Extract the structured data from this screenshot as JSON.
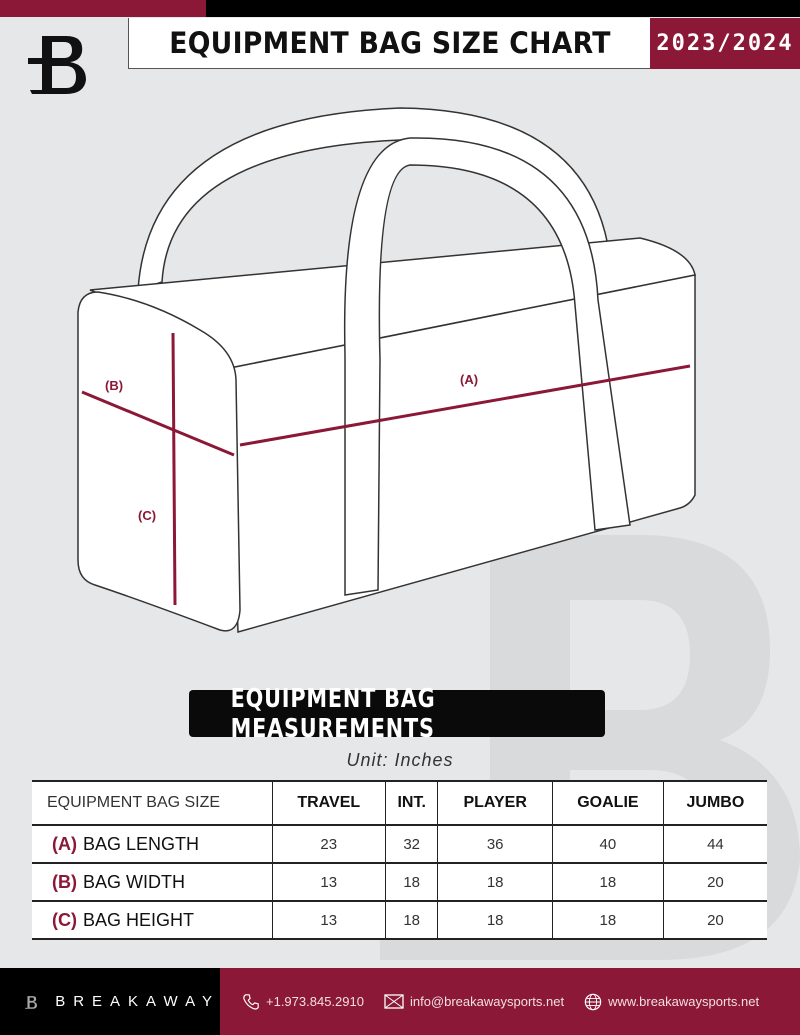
{
  "header": {
    "title": "EQUIPMENT BAG SIZE CHART",
    "season": "2023/2024",
    "logo_letter": "B"
  },
  "diagram": {
    "label_a": "(A)",
    "label_b": "(B)",
    "label_c": "(C)"
  },
  "section": {
    "banner": "EQUIPMENT BAG MEASUREMENTS",
    "unit": "Unit: Inches"
  },
  "table": {
    "corner": "EQUIPMENT BAG SIZE",
    "columns": [
      "TRAVEL",
      "INT.",
      "PLAYER",
      "GOALIE",
      "JUMBO"
    ],
    "rows": [
      {
        "code": "(A)",
        "label": "BAG LENGTH",
        "values": [
          "23",
          "32",
          "36",
          "40",
          "44"
        ]
      },
      {
        "code": "(B)",
        "label": "BAG WIDTH",
        "values": [
          "13",
          "18",
          "18",
          "18",
          "20"
        ]
      },
      {
        "code": "(C)",
        "label": "BAG HEIGHT",
        "values": [
          "13",
          "18",
          "18",
          "18",
          "20"
        ]
      }
    ]
  },
  "footer": {
    "brand": "BREAKAWAY",
    "phone": "+1.973.845.2910",
    "email": "info@breakawaysports.net",
    "website": "www.breakawaysports.net"
  },
  "colors": {
    "accent": "#8b1836",
    "background": "#e6e7e8",
    "dark": "#000000"
  }
}
